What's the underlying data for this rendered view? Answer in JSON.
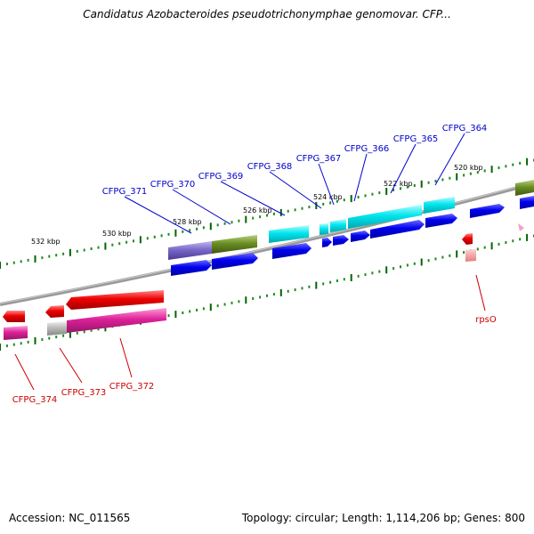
{
  "title": "Candidatus Azobacteroides pseudotrichonymphae genomovar. CFP...",
  "footer": {
    "accession": "Accession: NC_011565",
    "topology": "Topology: circular; Length: 1,114,206 bp; Genes: 800"
  },
  "ticks": [
    "532 kbp",
    "530 kbp",
    "528 kbp",
    "526 kbp",
    "524 kbp",
    "522 kbp",
    "520 kbp"
  ],
  "genes_forward": [
    "CFPG_371",
    "CFPG_370",
    "CFPG_369",
    "CFPG_368",
    "CFPG_367",
    "CFPG_366",
    "CFPG_365",
    "CFPG_364"
  ],
  "genes_reverse": [
    "CFPG_374",
    "CFPG_373",
    "CFPG_372",
    "rpsO"
  ],
  "colors": {
    "forward_label": "#0000cc",
    "reverse_label": "#cc0000",
    "cds": "#0000ee",
    "cyan": "#00e5ee",
    "olive": "#6b8e23",
    "purple": "#7b68c8",
    "red": "#ee0000",
    "magenta": "#dd2299",
    "grey": "#bbbbbb",
    "ruler": "#007700",
    "backbone": "#888888"
  }
}
